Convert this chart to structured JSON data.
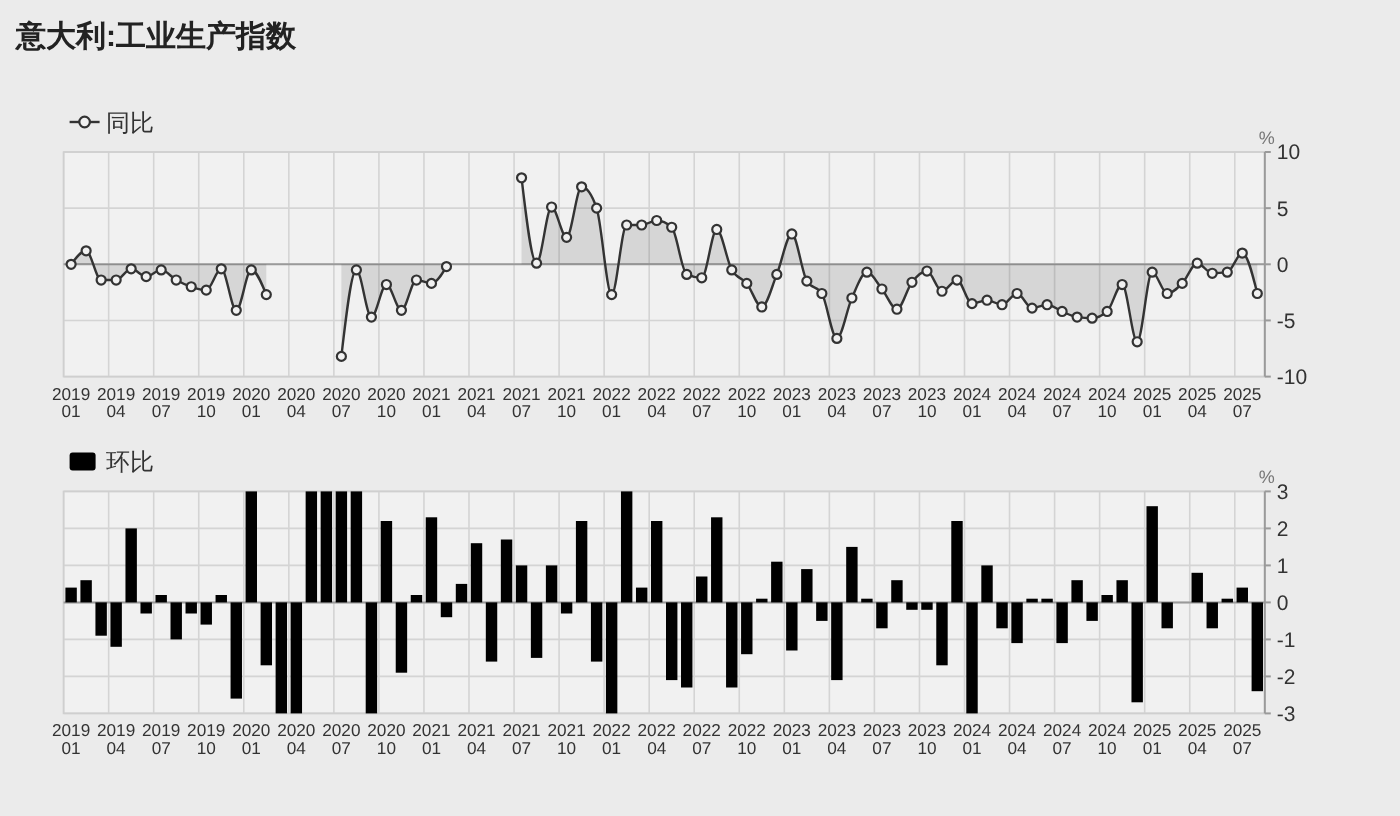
{
  "chart_data": [
    {
      "type": "area",
      "title": "意大利:工业生产指数",
      "ylabel": "%",
      "categories": [
        "2019\n01",
        null,
        null,
        "2019\n04",
        null,
        null,
        "2019\n07",
        null,
        null,
        "2019\n10",
        null,
        null,
        "2020\n01",
        null,
        null,
        "2020\n04",
        null,
        null,
        "2020\n07",
        null,
        null,
        "2020\n10",
        null,
        null,
        "2021\n01",
        null,
        null,
        "2021\n04",
        null,
        null,
        "2021\n07",
        null,
        null,
        "2021\n10",
        null,
        null,
        "2022\n01",
        null,
        null,
        "2022\n04",
        null,
        null,
        "2022\n07",
        null,
        null,
        "2022\n10",
        null,
        null,
        "2023\n01",
        null,
        null,
        "2023\n04",
        null,
        null,
        "2023\n07",
        null,
        null,
        "2023\n10",
        null,
        null,
        "2024\n01",
        null,
        null,
        "2024\n04",
        null,
        null,
        "2024\n07",
        null,
        null,
        "2024\n10",
        null,
        null,
        "2025\n01",
        null,
        null,
        "2025\n04",
        null,
        null,
        "2025\n07",
        null
      ],
      "series": [
        {
          "name": "同比",
          "color": "#333333",
          "values": [
            0.0,
            1.2,
            -1.4,
            -1.4,
            -0.4,
            -1.1,
            -0.5,
            -1.4,
            -2.0,
            -2.3,
            -0.4,
            -4.1,
            -0.5,
            -2.7,
            null,
            null,
            null,
            null,
            -8.2,
            -0.5,
            -4.7,
            -1.8,
            -4.1,
            -1.4,
            -1.7,
            -0.2,
            null,
            null,
            null,
            null,
            7.7,
            0.1,
            5.1,
            2.4,
            6.9,
            5.0,
            -2.7,
            3.5,
            3.5,
            3.9,
            3.3,
            -0.9,
            -1.2,
            3.1,
            -0.5,
            -1.7,
            -3.8,
            -0.9,
            2.7,
            -1.5,
            -2.6,
            -6.6,
            -3.0,
            -0.7,
            -2.2,
            -4.0,
            -1.6,
            -0.6,
            -2.4,
            -1.4,
            -3.5,
            -3.2,
            -3.6,
            -2.6,
            -3.9,
            -3.6,
            -4.2,
            -4.7,
            -4.8,
            -4.2,
            -1.8,
            -6.9,
            -0.7,
            -2.6,
            -1.7,
            0.1,
            -0.8,
            -0.7,
            1.0,
            -2.6
          ]
        }
      ],
      "ylim": [
        -10,
        10
      ],
      "yticks": [
        -10,
        -5,
        0,
        5,
        10
      ],
      "grid": true,
      "legend": "top left",
      "marker": "circle"
    },
    {
      "type": "bar",
      "ylabel": "%",
      "categories": [
        "2019\n01",
        null,
        null,
        "2019\n04",
        null,
        null,
        "2019\n07",
        null,
        null,
        "2019\n10",
        null,
        null,
        "2020\n01",
        null,
        null,
        "2020\n04",
        null,
        null,
        "2020\n07",
        null,
        null,
        "2020\n10",
        null,
        null,
        "2021\n01",
        null,
        null,
        "2021\n04",
        null,
        null,
        "2021\n07",
        null,
        null,
        "2021\n10",
        null,
        null,
        "2022\n01",
        null,
        null,
        "2022\n04",
        null,
        null,
        "2022\n07",
        null,
        null,
        "2022\n10",
        null,
        null,
        "2023\n01",
        null,
        null,
        "2023\n04",
        null,
        null,
        "2023\n07",
        null,
        null,
        "2023\n10",
        null,
        null,
        "2024\n01",
        null,
        null,
        "2024\n04",
        null,
        null,
        "2024\n07",
        null,
        null,
        "2024\n10",
        null,
        null,
        "2025\n01",
        null,
        null,
        "2025\n04",
        null,
        null,
        "2025\n07",
        null
      ],
      "series": [
        {
          "name": "环比",
          "color": "#000000",
          "values": [
            0.4,
            0.6,
            -0.9,
            -1.2,
            2.0,
            -0.3,
            0.2,
            -1.0,
            -0.3,
            -0.6,
            0.2,
            -2.6,
            3.0,
            -1.7,
            -3.0,
            -3.0,
            3.0,
            3.0,
            3.0,
            3.0,
            -3.0,
            2.2,
            -1.9,
            0.2,
            2.3,
            -0.4,
            0.5,
            1.6,
            -1.6,
            1.7,
            1.0,
            -1.5,
            1.0,
            -0.3,
            2.2,
            -1.6,
            -3.0,
            3.0,
            0.4,
            2.2,
            -2.1,
            -2.3,
            0.7,
            2.3,
            -2.3,
            -1.4,
            0.1,
            1.1,
            -1.3,
            0.9,
            -0.5,
            -2.1,
            1.5,
            0.1,
            -0.7,
            0.6,
            -0.2,
            -0.2,
            -1.7,
            2.2,
            -3.0,
            1.0,
            -0.7,
            -1.1,
            0.1,
            0.1,
            -1.1,
            0.6,
            -0.5,
            0.2,
            0.6,
            -2.7,
            2.6,
            -0.7,
            null,
            0.8,
            -0.7,
            0.1,
            0.4,
            -2.4
          ]
        }
      ],
      "ylim": [
        -3,
        3
      ],
      "yticks": [
        -3,
        -2,
        -1,
        0,
        1,
        2,
        3
      ],
      "grid": true,
      "legend": "top left"
    }
  ]
}
